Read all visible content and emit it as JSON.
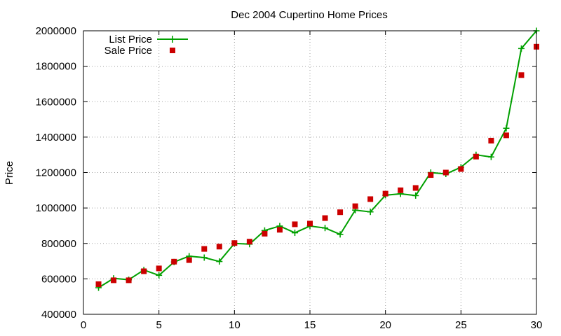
{
  "chart_data": {
    "type": "line",
    "title": "Dec 2004 Cupertino Home Prices",
    "xlabel": "",
    "ylabel": "Price",
    "xlim": [
      0,
      30
    ],
    "ylim": [
      400000,
      2000000
    ],
    "xticks": [
      "0",
      "5",
      "10",
      "15",
      "20",
      "25",
      "30"
    ],
    "yticks": [
      "400000",
      "600000",
      "800000",
      "1000000",
      "1200000",
      "1400000",
      "1600000",
      "1800000",
      "2000000"
    ],
    "grid": true,
    "legend_position": "top-left",
    "series": [
      {
        "name": "List Price",
        "style": "line-with-plus-markers",
        "color": "#00a000",
        "x": [
          1,
          2,
          3,
          4,
          5,
          6,
          7,
          8,
          9,
          10,
          11,
          12,
          13,
          14,
          15,
          16,
          17,
          18,
          19,
          20,
          21,
          22,
          23,
          24,
          25,
          26,
          27,
          28,
          29,
          30
        ],
        "y": [
          550000,
          603000,
          595000,
          650000,
          620000,
          695000,
          728000,
          720000,
          698000,
          800000,
          796000,
          873000,
          898000,
          860000,
          898000,
          887000,
          851000,
          988000,
          978000,
          1072000,
          1080000,
          1070000,
          1200000,
          1192000,
          1230000,
          1300000,
          1288000,
          1450000,
          1900000,
          2000000
        ]
      },
      {
        "name": "Sale Price",
        "style": "square-markers",
        "color": "#cc0000",
        "x": [
          1,
          2,
          3,
          4,
          5,
          6,
          7,
          8,
          9,
          10,
          11,
          12,
          13,
          14,
          15,
          16,
          17,
          18,
          19,
          20,
          21,
          22,
          23,
          24,
          25,
          26,
          27,
          28,
          29,
          30
        ],
        "y": [
          570000,
          592000,
          592000,
          643000,
          659000,
          697000,
          706000,
          769000,
          782000,
          802000,
          810000,
          855000,
          877000,
          908000,
          912000,
          943000,
          976000,
          1010000,
          1050000,
          1081000,
          1100000,
          1113000,
          1186000,
          1200000,
          1220000,
          1290000,
          1380000,
          1410000,
          1750000,
          1910000
        ]
      }
    ]
  }
}
